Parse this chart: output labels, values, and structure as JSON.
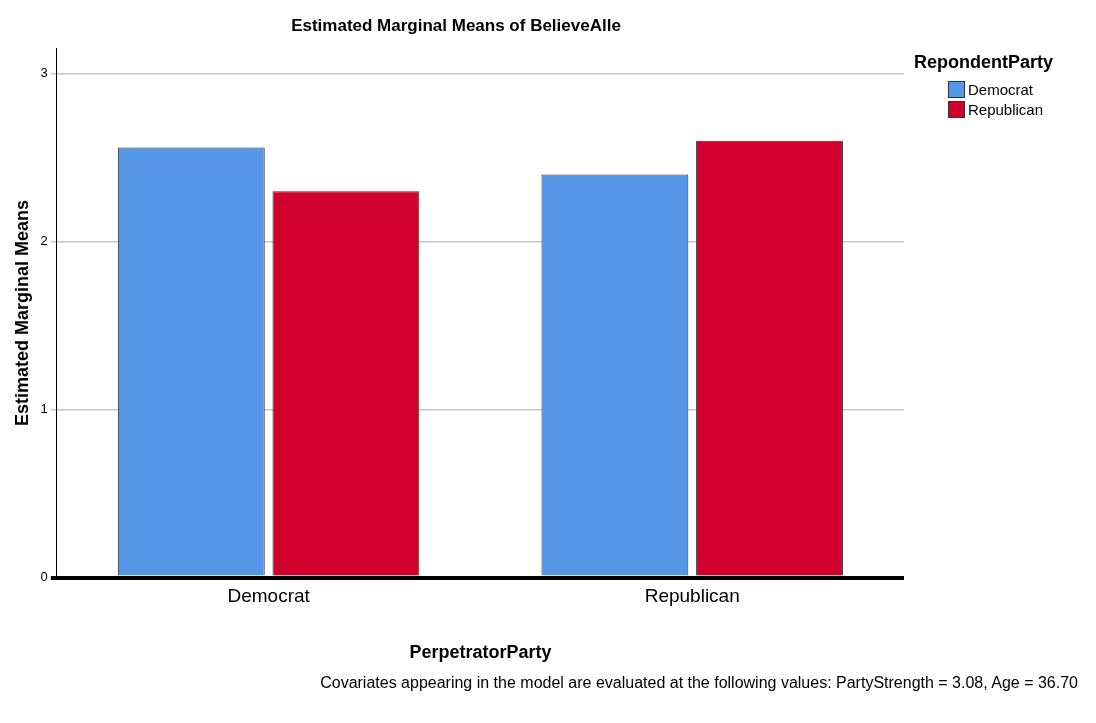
{
  "chart_data": {
    "type": "bar",
    "title": "Estimated Marginal Means of BelieveAlle",
    "xlabel": "PerpetratorParty",
    "ylabel": "Estimated Marginal Means",
    "legend_title": "RepondentParty",
    "categories": [
      "Democrat",
      "Republican"
    ],
    "series": [
      {
        "name": "Democrat",
        "color": "#5596e6",
        "values": [
          2.56,
          2.4
        ]
      },
      {
        "name": "Republican",
        "color": "#d2002e",
        "values": [
          2.3,
          2.6
        ]
      }
    ],
    "ylim": [
      0,
      3.15
    ],
    "yticks": [
      0,
      1,
      2,
      3
    ],
    "grid": "y",
    "legend": "top right",
    "annotations": [
      "Covariates appearing in the model are evaluated at the following values: PartyStrength = 3.08, Age = 36.70"
    ]
  }
}
